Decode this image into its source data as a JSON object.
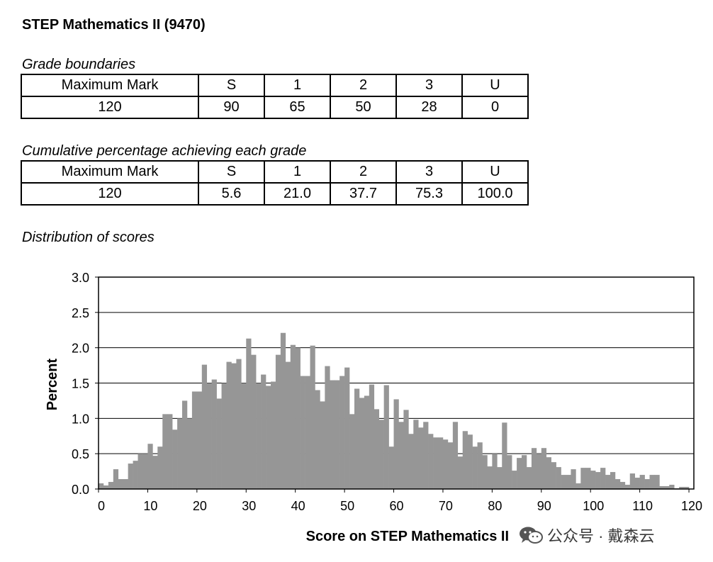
{
  "title": "STEP Mathematics II (9470)",
  "boundaries_caption": "Grade boundaries",
  "cumulative_caption": "Cumulative percentage achieving each grade",
  "distribution_caption": "Distribution of scores",
  "boundaries_table": {
    "header": [
      "Maximum Mark",
      "S",
      "1",
      "2",
      "3",
      "U"
    ],
    "values": [
      "120",
      "90",
      "65",
      "50",
      "28",
      "0"
    ]
  },
  "cumulative_table": {
    "header": [
      "Maximum Mark",
      "S",
      "1",
      "2",
      "3",
      "U"
    ],
    "values": [
      "120",
      "5.6",
      "21.0",
      "37.7",
      "75.3",
      "100.0"
    ]
  },
  "watermark": "公众号 · 戴森云",
  "chart_data": {
    "type": "bar",
    "title": "",
    "xlabel": "Score on STEP Mathematics II",
    "ylabel": "Percent",
    "xlim": [
      0,
      121
    ],
    "ylim": [
      0,
      3.0
    ],
    "x_ticks": [
      "0",
      "10",
      "20",
      "30",
      "40",
      "50",
      "60",
      "70",
      "80",
      "90",
      "100",
      "110",
      "120"
    ],
    "y_ticks": [
      "0.0",
      "0.5",
      "1.0",
      "1.5",
      "2.0",
      "2.5",
      "3.0"
    ],
    "grid": true,
    "bar_color": "#969696",
    "categories": [
      0,
      1,
      2,
      3,
      4,
      5,
      6,
      7,
      8,
      9,
      10,
      11,
      12,
      13,
      14,
      15,
      16,
      17,
      18,
      19,
      20,
      21,
      22,
      23,
      24,
      25,
      26,
      27,
      28,
      29,
      30,
      31,
      32,
      33,
      34,
      35,
      36,
      37,
      38,
      39,
      40,
      41,
      42,
      43,
      44,
      45,
      46,
      47,
      48,
      49,
      50,
      51,
      52,
      53,
      54,
      55,
      56,
      57,
      58,
      59,
      60,
      61,
      62,
      63,
      64,
      65,
      66,
      67,
      68,
      69,
      70,
      71,
      72,
      73,
      74,
      75,
      76,
      77,
      78,
      79,
      80,
      81,
      82,
      83,
      84,
      85,
      86,
      87,
      88,
      89,
      90,
      91,
      92,
      93,
      94,
      95,
      96,
      97,
      98,
      99,
      100,
      101,
      102,
      103,
      104,
      105,
      106,
      107,
      108,
      109,
      110,
      111,
      112,
      113,
      114,
      115,
      116,
      117,
      118,
      119,
      120
    ],
    "values": [
      0.08,
      0.05,
      0.1,
      0.28,
      0.14,
      0.14,
      0.36,
      0.4,
      0.5,
      0.5,
      0.64,
      0.47,
      0.6,
      1.06,
      1.06,
      0.84,
      1.0,
      1.25,
      1.0,
      1.38,
      1.38,
      1.76,
      1.5,
      1.55,
      1.28,
      1.5,
      1.8,
      1.78,
      1.84,
      1.5,
      2.13,
      1.9,
      1.5,
      1.62,
      1.46,
      1.52,
      1.9,
      2.21,
      1.8,
      2.04,
      2.0,
      1.6,
      1.6,
      2.03,
      1.4,
      1.24,
      1.74,
      1.54,
      1.54,
      1.6,
      1.72,
      1.06,
      1.42,
      1.29,
      1.32,
      1.48,
      1.13,
      0.98,
      1.47,
      0.6,
      1.27,
      0.95,
      1.12,
      0.78,
      0.98,
      0.87,
      0.95,
      0.78,
      0.73,
      0.73,
      0.7,
      0.66,
      0.95,
      0.46,
      0.82,
      0.77,
      0.6,
      0.66,
      0.48,
      0.32,
      0.5,
      0.31,
      0.94,
      0.48,
      0.26,
      0.44,
      0.48,
      0.31,
      0.58,
      0.5,
      0.58,
      0.45,
      0.38,
      0.31,
      0.2,
      0.2,
      0.28,
      0.08,
      0.3,
      0.3,
      0.26,
      0.24,
      0.3,
      0.2,
      0.24,
      0.14,
      0.1,
      0.06,
      0.22,
      0.16,
      0.2,
      0.14,
      0.2,
      0.2,
      0.04,
      0.04,
      0.06,
      0.01,
      0.03,
      0.03,
      0.0
    ]
  }
}
